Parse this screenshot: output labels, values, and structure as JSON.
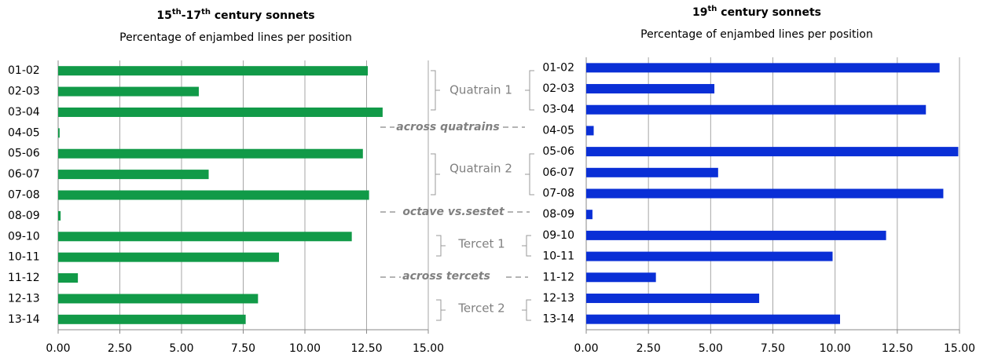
{
  "chart_data": [
    {
      "type": "bar",
      "orientation": "horizontal",
      "title": "15th-17th century sonnets",
      "subtitle": "Percentage of enjambed lines per position",
      "categories": [
        "01-02",
        "02-03",
        "03-04",
        "04-05",
        "05-06",
        "06-07",
        "07-08",
        "08-09",
        "09-10",
        "10-11",
        "11-12",
        "12-13",
        "13-14"
      ],
      "values": [
        12.55,
        5.7,
        13.15,
        0.06,
        12.35,
        6.1,
        12.6,
        0.1,
        11.9,
        8.95,
        0.8,
        8.1,
        7.6
      ],
      "color": "#119a48",
      "xlim": [
        0,
        15
      ],
      "xticks": [
        {
          "value": 0,
          "label": "0.00"
        },
        {
          "value": 2.5,
          "label": "2.50"
        },
        {
          "value": 5,
          "label": "5.00"
        },
        {
          "value": 7.5,
          "label": "7.50"
        },
        {
          "value": 10,
          "label": "10.00"
        },
        {
          "value": 12.5,
          "label": "12.50"
        },
        {
          "value": 15,
          "label": "15.00"
        }
      ],
      "grid": true
    },
    {
      "type": "bar",
      "orientation": "horizontal",
      "title": "19th century sonnets",
      "subtitle": "Percentage of enjambed lines per position",
      "categories": [
        "01-02",
        "02-03",
        "03-04",
        "04-05",
        "05-06",
        "06-07",
        "07-08",
        "08-09",
        "09-10",
        "10-11",
        "11-12",
        "12-13",
        "13-14"
      ],
      "values": [
        14.2,
        5.15,
        13.65,
        0.3,
        14.95,
        5.3,
        14.35,
        0.25,
        12.05,
        9.9,
        2.8,
        6.95,
        10.2
      ],
      "color": "#0a2fd6",
      "xlim": [
        0,
        15
      ],
      "xticks": [
        {
          "value": 0,
          "label": "0.00"
        },
        {
          "value": 2.5,
          "label": "2.50"
        },
        {
          "value": 5,
          "label": "5.00"
        },
        {
          "value": 7.5,
          "label": "7.50"
        },
        {
          "value": 10,
          "label": "10.00"
        },
        {
          "value": 12.5,
          "label": "12.50"
        },
        {
          "value": 15,
          "label": "15.00"
        }
      ],
      "grid": true
    }
  ],
  "annotations": [
    "Quatrain 1",
    "across quatrains",
    "Quatrain 2",
    "octave vs.sestet",
    "Tercet 1",
    "across tercets",
    "Tercet 2"
  ]
}
